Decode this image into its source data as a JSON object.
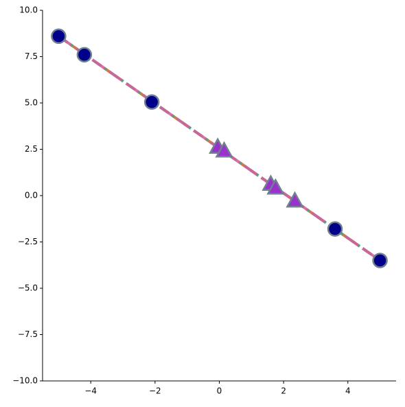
{
  "chart_data": {
    "type": "line",
    "xlim": [
      -5.5,
      5.5
    ],
    "ylim": [
      -10,
      10
    ],
    "xticks": [
      {
        "value": -4,
        "label": "−4"
      },
      {
        "value": -2,
        "label": "−2"
      },
      0,
      2,
      4
    ],
    "yticks": [
      {
        "value": -10,
        "label": "−10.0"
      },
      {
        "value": -7.5,
        "label": "−7.5"
      },
      {
        "value": -5,
        "label": "−5.0"
      },
      {
        "value": -2.5,
        "label": "−2.5"
      },
      {
        "value": 0,
        "label": "0.0"
      },
      {
        "value": 2.5,
        "label": "2.5"
      },
      {
        "value": 5,
        "label": "5.0"
      },
      {
        "value": 7.5,
        "label": "7.5"
      },
      {
        "value": 10,
        "label": "10.0"
      }
    ],
    "series": [
      {
        "color": "#cc6a30",
        "linestyle": "dashed",
        "x": [
          -5,
          5
        ],
        "values": [
          8.6,
          -3.5
        ]
      },
      {
        "color": "#3fa88a",
        "linestyle": "dashdot",
        "x": [
          -5,
          5
        ],
        "values": [
          8.6,
          -3.5
        ]
      },
      {
        "color": "#d6609c",
        "linestyle": "longdash",
        "x": [
          -5,
          5
        ],
        "values": [
          8.6,
          -3.5
        ]
      },
      {
        "color": "#00008b",
        "edgecolor": "#708090",
        "marker": "circle",
        "x": [
          -5,
          -4.2,
          -2.1,
          3.6,
          5
        ],
        "values": [
          8.6,
          7.6,
          5.05,
          -1.8,
          -3.5
        ]
      },
      {
        "color": "#9932cc",
        "edgecolor": "#708090",
        "marker": "triangle",
        "x": [
          -0.05,
          0.15,
          1.6,
          1.75,
          2.35
        ],
        "values": [
          2.6,
          2.4,
          0.6,
          0.4,
          -0.3
        ]
      }
    ]
  }
}
